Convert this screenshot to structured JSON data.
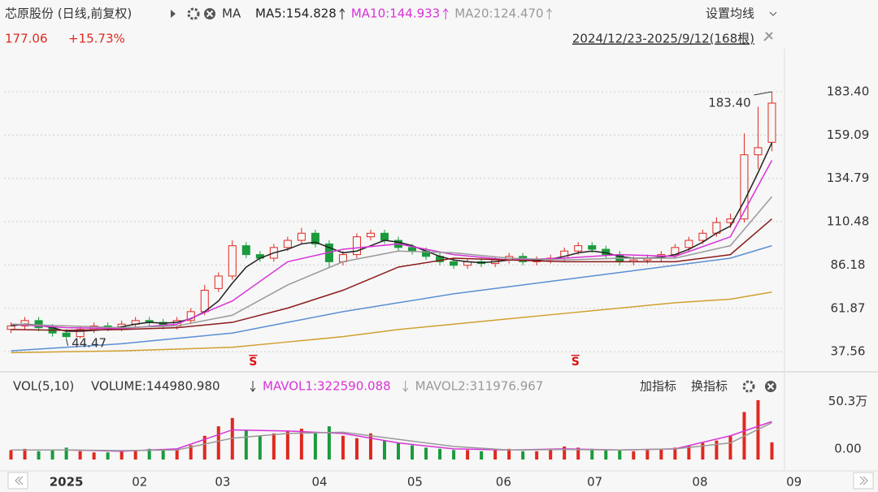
{
  "chart_data": {
    "type": "candlestick",
    "title": "芯原股份 (日线,前复权)",
    "indicator": "MA",
    "price": "177.06",
    "change": "+15.73%",
    "range_label": "2024/12/23-2025/9/12(168根)",
    "settings": "设置均线",
    "xlim": [
      -0.5,
      56.5
    ],
    "xticks": [
      {
        "value": 4,
        "label": "2025"
      },
      {
        "value": 9.3,
        "label": "02"
      },
      {
        "value": 15.3,
        "label": "03"
      },
      {
        "value": 22.3,
        "label": "04"
      },
      {
        "value": 29.2,
        "label": "05"
      },
      {
        "value": 35.6,
        "label": "06"
      },
      {
        "value": 42.2,
        "label": "07"
      },
      {
        "value": 49.8,
        "label": "08"
      },
      {
        "value": 56.6,
        "label": "09"
      }
    ],
    "ylim": [
      27.6,
      189.3
    ],
    "yticks": [
      {
        "value": 183.4,
        "label": "183.40"
      },
      159.09,
      134.79,
      110.48,
      86.18,
      61.87,
      37.56
    ],
    "grid": true,
    "up_color": "#e0281f",
    "down_color": "#1a9b3c",
    "candles": {
      "open": [
        50,
        52,
        55,
        51,
        48,
        46,
        50,
        52,
        51,
        53,
        55,
        54,
        52,
        55,
        60,
        73,
        80,
        97,
        92,
        90,
        96,
        100,
        104,
        98,
        88,
        92,
        102,
        104,
        100,
        96,
        94,
        91,
        88,
        86,
        88,
        87,
        89,
        91,
        88,
        89,
        90,
        94,
        97,
        95,
        92,
        88,
        89,
        90,
        92,
        96,
        100,
        104,
        110,
        112,
        148,
        155
      ],
      "high": [
        54,
        57,
        57,
        53,
        50,
        52,
        54,
        54,
        55,
        57,
        57,
        56,
        57,
        62,
        75,
        82,
        100,
        99,
        94,
        98,
        102,
        107,
        106,
        100,
        94,
        104,
        106,
        106,
        102,
        98,
        96,
        93,
        90,
        90,
        90,
        91,
        93,
        93,
        91,
        92,
        96,
        99,
        99,
        97,
        94,
        91,
        92,
        94,
        98,
        102,
        106,
        113,
        115,
        160,
        175,
        183.4
      ],
      "low": [
        48,
        50,
        49,
        46,
        44.47,
        45,
        48,
        49,
        49,
        51,
        52,
        50,
        50,
        53,
        58,
        71,
        78,
        90,
        88,
        88,
        94,
        98,
        96,
        85,
        86,
        90,
        100,
        98,
        94,
        92,
        89,
        86,
        84,
        84,
        85,
        85,
        87,
        86,
        86,
        87,
        88,
        92,
        93,
        90,
        86,
        86,
        87,
        88,
        90,
        94,
        98,
        102,
        107,
        110,
        140,
        150
      ],
      "close": [
        52,
        55,
        51,
        48,
        46,
        50,
        52,
        51,
        53,
        55,
        54,
        52,
        55,
        60,
        72,
        80,
        97,
        92,
        90,
        96,
        100,
        104,
        98,
        88,
        92,
        102,
        104,
        100,
        96,
        94,
        91,
        88,
        86,
        88,
        87,
        89,
        91,
        88,
        89,
        90,
        94,
        97,
        95,
        92,
        88,
        89,
        90,
        92,
        96,
        100,
        104,
        110,
        112,
        148,
        152,
        177
      ]
    },
    "series": [
      {
        "name": "MA5:154.828",
        "color": "#222222",
        "x": [
          0,
          1,
          2,
          3,
          4,
          5,
          6,
          7,
          8,
          9,
          10,
          11,
          12,
          13,
          14,
          15,
          16,
          17,
          18,
          19,
          20,
          21,
          22,
          23,
          24,
          25,
          26,
          27,
          28,
          29,
          30,
          31,
          32,
          33,
          34,
          35,
          36,
          37,
          38,
          39,
          40,
          41,
          42,
          43,
          44,
          45,
          46,
          47,
          48,
          49,
          50,
          51,
          52,
          53,
          54,
          55
        ],
        "values": [
          52,
          53,
          52.5,
          51,
          49,
          49,
          49.5,
          50,
          51.5,
          53,
          54,
          53.5,
          54,
          56,
          60,
          66,
          76,
          85,
          90,
          93,
          95,
          98,
          99,
          96,
          93,
          94,
          97,
          100,
          99,
          97,
          94,
          91,
          89,
          88,
          87.5,
          88,
          89,
          89,
          89,
          89.5,
          91,
          93,
          94,
          93,
          91,
          90,
          90,
          90.5,
          92,
          95,
          99,
          104,
          108,
          122,
          138,
          154.8
        ]
      },
      {
        "name": "MA10:144.933",
        "color": "#d733d7",
        "x": [
          0,
          4,
          8,
          12,
          16,
          20,
          24,
          28,
          32,
          36,
          40,
          44,
          48,
          52,
          55
        ],
        "values": [
          53,
          51,
          50.5,
          53,
          66,
          88,
          95,
          98,
          92,
          89,
          90,
          92,
          91,
          102,
          144.9
        ]
      },
      {
        "name": "MA20:124.470",
        "color": "#999999",
        "x": [
          0,
          4,
          8,
          12,
          16,
          20,
          24,
          28,
          32,
          36,
          40,
          44,
          48,
          52,
          55
        ],
        "values": [
          53,
          52,
          51,
          52,
          58,
          75,
          88,
          94,
          93,
          90,
          89,
          90,
          90,
          97,
          124.5
        ]
      },
      {
        "color": "#8b1a1a",
        "x": [
          0,
          4,
          8,
          12,
          16,
          20,
          24,
          28,
          32,
          36,
          40,
          44,
          48,
          52,
          55
        ],
        "values": [
          50,
          49.5,
          50,
          51,
          54,
          62,
          72,
          85,
          90,
          89,
          88,
          88,
          88,
          92,
          112
        ]
      },
      {
        "color": "#5b8fd4",
        "x": [
          0,
          4,
          8,
          12,
          16,
          20,
          24,
          28,
          32,
          36,
          40,
          44,
          48,
          52,
          55
        ],
        "values": [
          38,
          40,
          42,
          45,
          48,
          54,
          60,
          65,
          70,
          74,
          78,
          82,
          86,
          90,
          97
        ]
      },
      {
        "color": "#d0a030",
        "x": [
          0,
          4,
          8,
          12,
          16,
          20,
          24,
          28,
          32,
          36,
          40,
          44,
          48,
          52,
          55
        ],
        "values": [
          37,
          37.5,
          38,
          39,
          40,
          43,
          46,
          50,
          53,
          56,
          59,
          62,
          65,
          67,
          71
        ]
      }
    ],
    "annotations": [
      {
        "text": "183.40",
        "x": 55,
        "y": 183.4
      },
      {
        "text": "44.47",
        "x": 4,
        "y": 44.47
      }
    ],
    "markers": [
      {
        "x": 17.5,
        "label": "S"
      },
      {
        "x": 40.8,
        "label": "S"
      }
    ],
    "volume": {
      "title": "VOL(5,10)",
      "label": "VOLUME:144980.980",
      "buttons": [
        "加指标",
        "换指标"
      ],
      "ylim": [
        0,
        52
      ],
      "yticks": [
        {
          "value": 50.3,
          "label": "50.3万"
        },
        {
          "value": 0,
          "label": "0.00"
        }
      ],
      "values": [
        8,
        9,
        7,
        8,
        10,
        7,
        6,
        6,
        7,
        8,
        9,
        8,
        9,
        12,
        20,
        28,
        35,
        25,
        20,
        22,
        24,
        26,
        22,
        28,
        20,
        18,
        22,
        16,
        14,
        12,
        10,
        9,
        8,
        8,
        7,
        8,
        9,
        7,
        7,
        8,
        11,
        10,
        9,
        8,
        8,
        7,
        8,
        9,
        10,
        12,
        14,
        16,
        20,
        40,
        50,
        14.5
      ],
      "series": [
        {
          "name": "MAVOL1:322590.088",
          "color": "#d733d7",
          "x": [
            0,
            4,
            8,
            12,
            16,
            20,
            24,
            28,
            32,
            36,
            40,
            44,
            48,
            52,
            55
          ],
          "values": [
            8,
            8,
            7,
            9,
            25,
            24,
            22,
            14,
            9,
            8,
            9,
            8,
            9,
            20,
            32
          ]
        },
        {
          "name": "MAVOL2:311976.967",
          "color": "#999999",
          "x": [
            0,
            4,
            8,
            12,
            16,
            20,
            24,
            28,
            32,
            36,
            40,
            44,
            48,
            52,
            55
          ],
          "values": [
            8,
            8,
            7.5,
            8,
            18,
            22,
            23,
            17,
            11,
            8,
            8.5,
            8,
            9,
            14,
            31
          ]
        }
      ]
    }
  }
}
